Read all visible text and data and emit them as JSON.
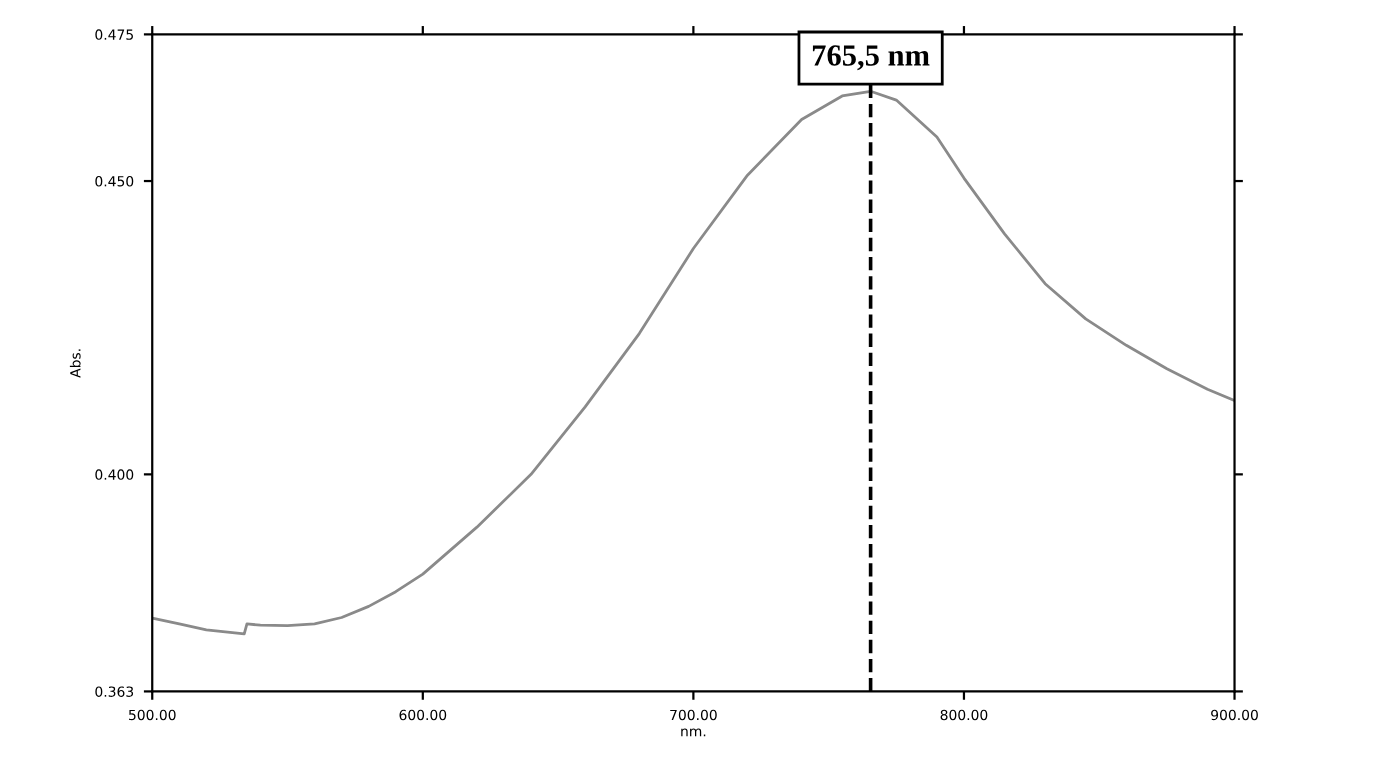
{
  "chart_data": {
    "type": "line",
    "xlabel": "nm.",
    "ylabel": "Abs.",
    "xlim": [
      500,
      900
    ],
    "ylim": [
      0.363,
      0.475
    ],
    "xticks": [
      {
        "value": 500,
        "label": "500.00"
      },
      {
        "value": 600,
        "label": "600.00"
      },
      {
        "value": 700,
        "label": "700.00"
      },
      {
        "value": 800,
        "label": "800.00"
      },
      {
        "value": 900,
        "label": "900.00"
      }
    ],
    "yticks": [
      0.363,
      {
        "value": 0.4,
        "label": "0.400"
      },
      {
        "value": 0.45,
        "label": "0.450"
      },
      0.475
    ],
    "grid": false,
    "legend": false,
    "series": [
      {
        "color": "#8a8a8a",
        "x": [
          500,
          510,
          520,
          534,
          535,
          540,
          550,
          560,
          570,
          580,
          590,
          600,
          620,
          640,
          660,
          680,
          700,
          720,
          740,
          755,
          765.5,
          775,
          790,
          800,
          815,
          830,
          845,
          860,
          875,
          890,
          900
        ],
        "values": [
          0.3755,
          0.3745,
          0.3735,
          0.3728,
          0.3745,
          0.3743,
          0.3742,
          0.3745,
          0.3756,
          0.3775,
          0.38,
          0.383,
          0.391,
          0.4,
          0.4115,
          0.424,
          0.4385,
          0.451,
          0.4605,
          0.4645,
          0.4653,
          0.4638,
          0.4575,
          0.4505,
          0.441,
          0.4325,
          0.4265,
          0.422,
          0.418,
          0.4145,
          0.4126
        ]
      }
    ],
    "ref_lines": [
      {
        "axis": "x",
        "value": 765.5,
        "label": "765,5 nm",
        "color": "#000000",
        "line_style": "dashed"
      }
    ]
  }
}
